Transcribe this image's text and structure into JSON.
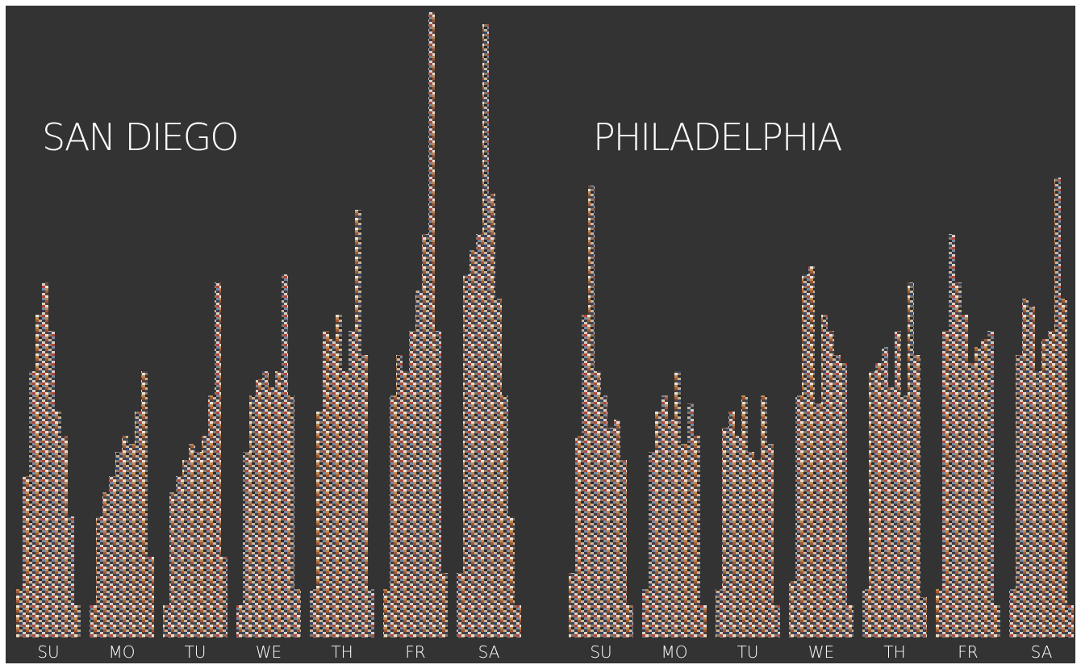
{
  "chart_data": [
    {
      "type": "bar",
      "title": "SAN DIEGO",
      "series": [
        {
          "name": "SU",
          "values": [
            60,
            200,
            330,
            400,
            440,
            380,
            280,
            250,
            150,
            40
          ]
        },
        {
          "name": "MO",
          "values": [
            40,
            150,
            180,
            200,
            230,
            250,
            240,
            280,
            330,
            100
          ]
        },
        {
          "name": "TU",
          "values": [
            40,
            180,
            200,
            220,
            240,
            230,
            250,
            300,
            440,
            100
          ]
        },
        {
          "name": "WE",
          "values": [
            40,
            230,
            300,
            320,
            330,
            310,
            330,
            450,
            300,
            60
          ]
        },
        {
          "name": "TH",
          "values": [
            60,
            280,
            380,
            370,
            400,
            330,
            380,
            530,
            350,
            60
          ]
        },
        {
          "name": "FR",
          "values": [
            60,
            300,
            350,
            330,
            380,
            430,
            500,
            775,
            380,
            80
          ]
        },
        {
          "name": "SA",
          "values": [
            80,
            450,
            480,
            500,
            760,
            550,
            420,
            300,
            150,
            40
          ]
        }
      ]
    },
    {
      "type": "bar",
      "title": "PHILADELPHIA",
      "series": [
        {
          "name": "SU",
          "values": [
            80,
            250,
            400,
            560,
            330,
            300,
            260,
            270,
            220,
            40
          ]
        },
        {
          "name": "MO",
          "values": [
            60,
            230,
            280,
            300,
            270,
            330,
            240,
            290,
            250,
            40
          ]
        },
        {
          "name": "TU",
          "values": [
            60,
            260,
            280,
            250,
            300,
            230,
            220,
            300,
            240,
            40
          ]
        },
        {
          "name": "WE",
          "values": [
            70,
            300,
            450,
            460,
            290,
            400,
            380,
            350,
            340,
            40
          ]
        },
        {
          "name": "TH",
          "values": [
            60,
            330,
            340,
            360,
            310,
            380,
            300,
            440,
            350,
            50
          ]
        },
        {
          "name": "FR",
          "values": [
            60,
            380,
            500,
            440,
            400,
            340,
            360,
            370,
            380,
            40
          ]
        },
        {
          "name": "SA",
          "values": [
            60,
            350,
            420,
            410,
            330,
            370,
            380,
            570,
            420,
            40
          ]
        }
      ]
    }
  ]
}
